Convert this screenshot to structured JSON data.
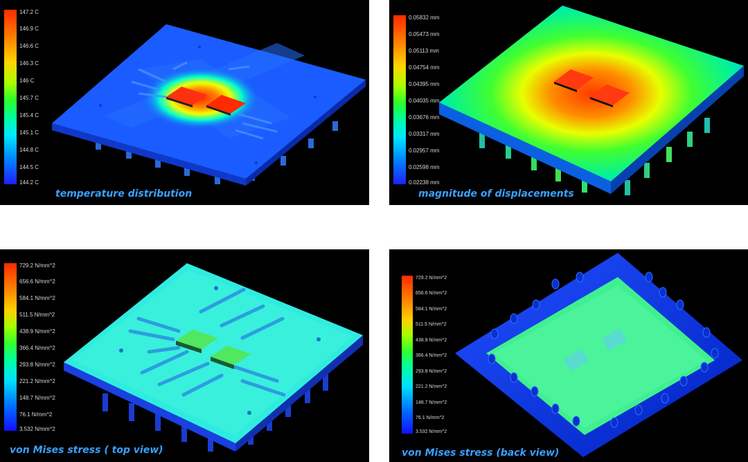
{
  "panels": [
    {
      "caption": "temperature distribution",
      "legend": [
        "147.2 C",
        "146.9 C",
        "146.6 C",
        "146.3 C",
        "146 C",
        "145.7 C",
        "145.4 C",
        "145.1 C",
        "144.8 C",
        "144.5 C",
        "144.2 C"
      ]
    },
    {
      "caption": "magnitude of displacements",
      "legend": [
        "0.05832 mm",
        "0.05473 mm",
        "0.05113 mm",
        "0.04754 mm",
        "0.04395 mm",
        "0.04035 mm",
        "0.03676 mm",
        "0.03317 mm",
        "0.02957 mm",
        "0.02598 mm",
        "0.02238 mm"
      ]
    },
    {
      "caption": "von Mises stress ( top view)",
      "legend": [
        "729.2 N/mm^2",
        "656.6 N/mm^2",
        "584.1 N/mm^2",
        "511.5 N/mm^2",
        "438.9 N/mm^2",
        "366.4 N/mm^2",
        "293.8 N/mm^2",
        "221.2 N/mm^2",
        "148.7 N/mm^2",
        "76.1 N/mm^2",
        "3.532 N/mm^2"
      ]
    },
    {
      "caption": "von Mises stress (back view)",
      "legend": [
        "729.2 N/mm^2",
        "656.6 N/mm^2",
        "584.1 N/mm^2",
        "511.5 N/mm^2",
        "438.9 N/mm^2",
        "366.4 N/mm^2",
        "293.8 N/mm^2",
        "221.2 N/mm^2",
        "148.7 N/mm^2",
        "76.1 N/mm^2",
        "3.532 N/mm^2"
      ]
    }
  ],
  "colors": {
    "background": "#000000",
    "caption": "#3aa0ff",
    "legend_text": "#d8d8d8"
  }
}
